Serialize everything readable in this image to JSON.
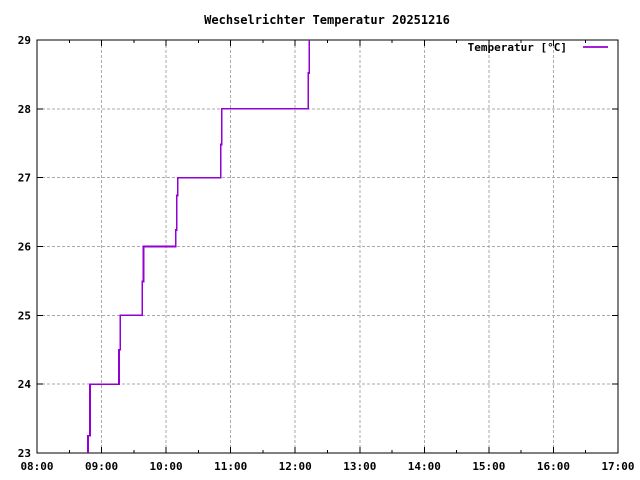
{
  "window": {
    "background": "#ffffff"
  },
  "colors": {
    "axis": "#000000",
    "grid": "#aaaaaa",
    "background": "#ffffff",
    "line": "#9400d3"
  },
  "chart_data": {
    "type": "line",
    "title": "Wechselrichter Temperatur 20251216",
    "xlabel": "",
    "ylabel": "",
    "grid": true,
    "legend": {
      "label": "Temperatur [°C]",
      "position": "top-right-inside"
    },
    "x_axis": {
      "unit": "time-of-day",
      "range_hours": [
        8,
        17
      ],
      "tick_hours": [
        8,
        9,
        10,
        11,
        12,
        13,
        14,
        15,
        16,
        17
      ],
      "tick_labels": [
        "08:00",
        "09:00",
        "10:00",
        "11:00",
        "12:00",
        "13:00",
        "14:00",
        "15:00",
        "16:00",
        "17:00"
      ],
      "minor_tick_hours": [
        8.5,
        9.5,
        10.5,
        11.5,
        12.5,
        13.5,
        14.5,
        15.5,
        16.5
      ]
    },
    "y_axis": {
      "unit": "°C",
      "range": [
        23,
        29
      ],
      "tick_values": [
        23,
        24,
        25,
        26,
        27,
        28,
        29
      ],
      "tick_labels": [
        "23",
        "24",
        "25",
        "26",
        "27",
        "28",
        "29"
      ]
    },
    "series": [
      {
        "name": "Temperatur [°C]",
        "color": "#9400d3",
        "points_hour_degC": [
          [
            8.79,
            23.0
          ],
          [
            8.79,
            23.25
          ],
          [
            8.821,
            23.25
          ],
          [
            8.821,
            24.0
          ],
          [
            9.27,
            24.0
          ],
          [
            9.27,
            24.5
          ],
          [
            9.29,
            24.5
          ],
          [
            9.29,
            25.0
          ],
          [
            9.631,
            25.0
          ],
          [
            9.631,
            25.49
          ],
          [
            9.65,
            25.49
          ],
          [
            9.65,
            26.0
          ],
          [
            10.148,
            26.0
          ],
          [
            10.148,
            26.24
          ],
          [
            10.164,
            26.24
          ],
          [
            10.164,
            26.74
          ],
          [
            10.179,
            26.74
          ],
          [
            10.179,
            27.0
          ],
          [
            10.845,
            27.0
          ],
          [
            10.845,
            27.48
          ],
          [
            10.861,
            27.48
          ],
          [
            10.861,
            28.0
          ],
          [
            12.202,
            28.0
          ],
          [
            12.202,
            28.52
          ],
          [
            12.218,
            28.52
          ],
          [
            12.218,
            29.0
          ]
        ]
      }
    ]
  }
}
